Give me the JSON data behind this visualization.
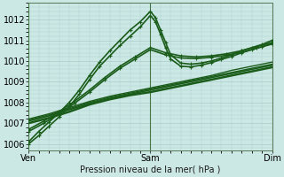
{
  "title": "Pression niveau de la mer( hPa )",
  "bg_color": "#cce8e4",
  "grid_color": "#aacccc",
  "line_color": "#1a5c1a",
  "xlim": [
    0,
    48
  ],
  "ylim": [
    1005.7,
    1012.8
  ],
  "yticks": [
    1006,
    1007,
    1008,
    1009,
    1010,
    1011,
    1012
  ],
  "xtick_labels": [
    "Ven",
    "Sam",
    "Dim"
  ],
  "xtick_positions": [
    0,
    24,
    48
  ],
  "series": [
    {
      "x": [
        0,
        2,
        4,
        6,
        8,
        10,
        12,
        14,
        16,
        18,
        20,
        22,
        24,
        25,
        26,
        27,
        28,
        30,
        32,
        34,
        36,
        38,
        40,
        42,
        44,
        46,
        48
      ],
      "y": [
        1006.1,
        1006.6,
        1007.05,
        1007.5,
        1008.0,
        1008.6,
        1009.3,
        1009.95,
        1010.5,
        1011.0,
        1011.5,
        1011.9,
        1012.4,
        1012.1,
        1011.5,
        1010.9,
        1010.3,
        1009.9,
        1009.85,
        1009.9,
        1010.0,
        1010.15,
        1010.3,
        1010.5,
        1010.65,
        1010.8,
        1011.0
      ],
      "marker": "+",
      "ms": 3.5,
      "lw": 1.2
    },
    {
      "x": [
        0,
        2,
        4,
        6,
        8,
        10,
        12,
        14,
        16,
        18,
        20,
        22,
        24,
        25,
        26,
        27,
        28,
        30,
        32,
        34,
        36,
        38,
        40,
        42,
        44,
        46,
        48
      ],
      "y": [
        1006.0,
        1006.4,
        1006.85,
        1007.3,
        1007.8,
        1008.4,
        1009.1,
        1009.75,
        1010.25,
        1010.75,
        1011.2,
        1011.65,
        1012.2,
        1011.9,
        1011.3,
        1010.65,
        1010.1,
        1009.75,
        1009.72,
        1009.8,
        1009.92,
        1010.08,
        1010.22,
        1010.4,
        1010.55,
        1010.7,
        1010.85
      ],
      "marker": "+",
      "ms": 3.5,
      "lw": 1.2
    },
    {
      "x": [
        0,
        4,
        8,
        12,
        16,
        20,
        24,
        28,
        32,
        36,
        40,
        44,
        48
      ],
      "y": [
        1007.0,
        1007.25,
        1007.55,
        1007.9,
        1008.15,
        1008.35,
        1008.5,
        1008.7,
        1008.9,
        1009.1,
        1009.3,
        1009.5,
        1009.7
      ],
      "marker": null,
      "ms": 0,
      "lw": 1.8
    },
    {
      "x": [
        0,
        4,
        8,
        12,
        16,
        20,
        24,
        28,
        32,
        36,
        40,
        44,
        48
      ],
      "y": [
        1007.1,
        1007.35,
        1007.65,
        1007.95,
        1008.2,
        1008.4,
        1008.6,
        1008.8,
        1009.0,
        1009.2,
        1009.4,
        1009.6,
        1009.8
      ],
      "marker": null,
      "ms": 0,
      "lw": 1.2
    },
    {
      "x": [
        0,
        4,
        8,
        12,
        16,
        20,
        24,
        28,
        32,
        36,
        40,
        44,
        48
      ],
      "y": [
        1007.15,
        1007.4,
        1007.7,
        1008.0,
        1008.25,
        1008.45,
        1008.65,
        1008.85,
        1009.05,
        1009.25,
        1009.45,
        1009.65,
        1009.85
      ],
      "marker": null,
      "ms": 0,
      "lw": 1.0
    },
    {
      "x": [
        0,
        4,
        8,
        12,
        16,
        20,
        24,
        28,
        32,
        36,
        40,
        44,
        48
      ],
      "y": [
        1007.2,
        1007.45,
        1007.75,
        1008.05,
        1008.3,
        1008.5,
        1008.7,
        1008.9,
        1009.1,
        1009.3,
        1009.55,
        1009.75,
        1009.95
      ],
      "marker": null,
      "ms": 0,
      "lw": 1.0
    },
    {
      "x": [
        0,
        3,
        6,
        9,
        12,
        15,
        18,
        21,
        24,
        27,
        30,
        33,
        36,
        39,
        42,
        45,
        48
      ],
      "y": [
        1006.7,
        1007.1,
        1007.55,
        1008.05,
        1008.6,
        1009.2,
        1009.75,
        1010.2,
        1010.65,
        1010.4,
        1010.25,
        1010.2,
        1010.25,
        1010.35,
        1010.5,
        1010.7,
        1010.9
      ],
      "marker": "+",
      "ms": 3.5,
      "lw": 1.2
    },
    {
      "x": [
        0,
        3,
        6,
        9,
        12,
        15,
        18,
        21,
        24,
        27,
        30,
        33,
        36,
        39,
        42,
        45,
        48
      ],
      "y": [
        1006.6,
        1007.0,
        1007.45,
        1007.95,
        1008.5,
        1009.1,
        1009.65,
        1010.1,
        1010.55,
        1010.3,
        1010.15,
        1010.12,
        1010.18,
        1010.28,
        1010.42,
        1010.62,
        1010.82
      ],
      "marker": "+",
      "ms": 3.5,
      "lw": 1.2
    }
  ]
}
